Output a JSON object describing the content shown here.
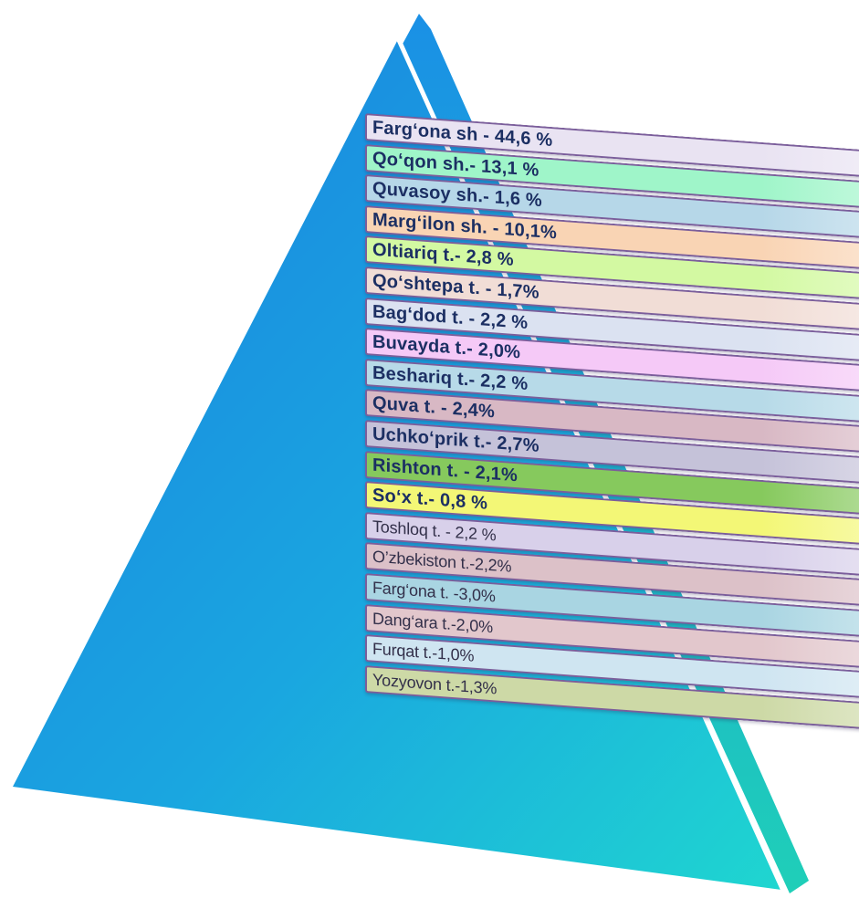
{
  "colors": {
    "pyramid_top": "#1a7fe0",
    "pyramid_bottom": "#1fd6d0",
    "edge_face": "#1aa0e0",
    "frame": "#7b5e9b",
    "bold_text": "#1c2f63",
    "light_text": "#33304a"
  },
  "items": [
    {
      "label": "Farg‘ona sh - 44,6 %",
      "color": "#e9e3f2",
      "style": "bold"
    },
    {
      "label": "Qo‘qon sh.- 13,1 %",
      "color": "#9ff5c9",
      "style": "bold"
    },
    {
      "label": "Quvasoy sh.- 1,6 %",
      "color": "#b6d7e8",
      "style": "bold"
    },
    {
      "label": "Marg‘ilon sh. - 10,1%",
      "color": "#f9d4b4",
      "style": "bold"
    },
    {
      "label": "Oltiariq t.- 2,8 %",
      "color": "#d3f9a2",
      "style": "bold"
    },
    {
      "label": "Qo‘shtepa t. - 1,7%",
      "color": "#f1ddd6",
      "style": "bold"
    },
    {
      "label": "Bag‘dod t. - 2,2 %",
      "color": "#dbe2f1",
      "style": "bold"
    },
    {
      "label": "Buvayda t.- 2,0%",
      "color": "#f5c9f7",
      "style": "bold"
    },
    {
      "label": "Beshariq t.- 2,2 %",
      "color": "#b7dae8",
      "style": "bold"
    },
    {
      "label": "Quva t.  - 2,4%",
      "color": "#d8b8c4",
      "style": "bold"
    },
    {
      "label": "Uchko‘prik t.- 2,7%",
      "color": "#c5c2d9",
      "style": "bold"
    },
    {
      "label": "Rishton t. - 2,1%",
      "color": "#86c95d",
      "style": "bold"
    },
    {
      "label": "So‘x t.- 0,8 %",
      "color": "#f3f776",
      "style": "bold"
    },
    {
      "label": "Toshloq t. - 2,2 %",
      "color": "#d8d0ea",
      "style": "light"
    },
    {
      "label": "O’zbekiston t.-2,2%",
      "color": "#dcc1c8",
      "style": "light"
    },
    {
      "label": "Farg‘ona t. -3,0%",
      "color": "#a9d5e2",
      "style": "light"
    },
    {
      "label": "Dang‘ara t.-2,0%",
      "color": "#e2c7cc",
      "style": "light"
    },
    {
      "label": "Furqat t.-1,0%",
      "color": "#cfe5f1",
      "style": "light"
    },
    {
      "label": "Yozyovon t.-1,3%",
      "color": "#cdd9a6",
      "style": "light"
    }
  ]
}
